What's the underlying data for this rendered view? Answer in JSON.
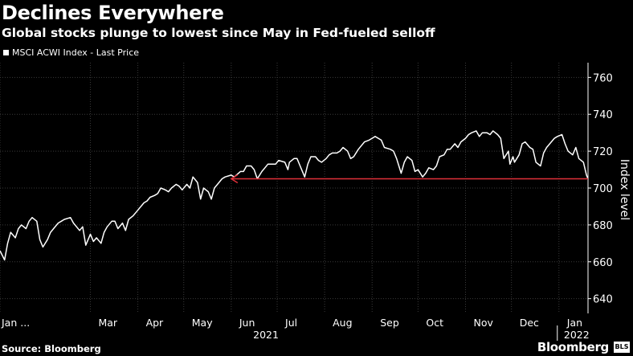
{
  "header": {
    "title": "Declines Everywhere",
    "subtitle": "Global stocks plunge to lowest since May in Fed-fueled selloff"
  },
  "legend": {
    "label": "MSCI ACWI Index - Last Price"
  },
  "footer": {
    "source": "Source: Bloomberg",
    "brand": "Bloomberg",
    "badge": "BLS"
  },
  "colors": {
    "background": "#000000",
    "line": "#ffffff",
    "arrow": "#e0303a",
    "grid": "#3a3a3a"
  },
  "chart_data": {
    "type": "line",
    "title": "Declines Everywhere",
    "subtitle": "Global stocks plunge to lowest since May in Fed-fueled selloff",
    "ylabel": "Index level",
    "ylim": [
      632,
      768
    ],
    "yticks": [
      640,
      660,
      680,
      700,
      720,
      740,
      760
    ],
    "x_domain": [
      "2021-01-01",
      "2022-01-20"
    ],
    "xticks": [
      {
        "date": "2021-01-01",
        "label": "Jan ..."
      },
      {
        "date": "2021-03-01",
        "label": "Mar"
      },
      {
        "date": "2021-04-01",
        "label": "Apr"
      },
      {
        "date": "2021-05-01",
        "label": "May"
      },
      {
        "date": "2021-06-01",
        "label": "Jun"
      },
      {
        "date": "2021-07-01",
        "label": "Jul"
      },
      {
        "date": "2021-08-01",
        "label": "Aug"
      },
      {
        "date": "2021-09-01",
        "label": "Sep"
      },
      {
        "date": "2021-10-01",
        "label": "Oct"
      },
      {
        "date": "2021-11-01",
        "label": "Nov"
      },
      {
        "date": "2021-12-01",
        "label": "Dec"
      },
      {
        "date": "2022-01-01",
        "label": "Jan"
      }
    ],
    "year_labels": [
      {
        "date": "2021-07-01",
        "label": "2021"
      },
      {
        "date": "2022-01-01",
        "label": "2022"
      }
    ],
    "grid": true,
    "legend_position": "top-left",
    "series": [
      {
        "name": "MSCI ACWI Index - Last Price",
        "points": [
          [
            "2021-01-01",
            666
          ],
          [
            "2021-01-04",
            661
          ],
          [
            "2021-01-06",
            670
          ],
          [
            "2021-01-08",
            676
          ],
          [
            "2021-01-11",
            673
          ],
          [
            "2021-01-13",
            678
          ],
          [
            "2021-01-15",
            680
          ],
          [
            "2021-01-18",
            678
          ],
          [
            "2021-01-20",
            682
          ],
          [
            "2021-01-22",
            684
          ],
          [
            "2021-01-25",
            682
          ],
          [
            "2021-01-27",
            672
          ],
          [
            "2021-01-29",
            668
          ],
          [
            "2021-02-01",
            672
          ],
          [
            "2021-02-03",
            676
          ],
          [
            "2021-02-05",
            678
          ],
          [
            "2021-02-08",
            681
          ],
          [
            "2021-02-10",
            682
          ],
          [
            "2021-02-12",
            683
          ],
          [
            "2021-02-16",
            684
          ],
          [
            "2021-02-18",
            681
          ],
          [
            "2021-02-22",
            677
          ],
          [
            "2021-02-24",
            679
          ],
          [
            "2021-02-26",
            669
          ],
          [
            "2021-03-01",
            675
          ],
          [
            "2021-03-03",
            671
          ],
          [
            "2021-03-05",
            673
          ],
          [
            "2021-03-08",
            670
          ],
          [
            "2021-03-10",
            676
          ],
          [
            "2021-03-12",
            679
          ],
          [
            "2021-03-15",
            682
          ],
          [
            "2021-03-17",
            682
          ],
          [
            "2021-03-19",
            678
          ],
          [
            "2021-03-22",
            681
          ],
          [
            "2021-03-24",
            677
          ],
          [
            "2021-03-26",
            683
          ],
          [
            "2021-03-29",
            685
          ],
          [
            "2021-03-31",
            687
          ],
          [
            "2021-04-02",
            689
          ],
          [
            "2021-04-05",
            692
          ],
          [
            "2021-04-07",
            693
          ],
          [
            "2021-04-09",
            695
          ],
          [
            "2021-04-12",
            696
          ],
          [
            "2021-04-14",
            697
          ],
          [
            "2021-04-16",
            700
          ],
          [
            "2021-04-19",
            699
          ],
          [
            "2021-04-21",
            698
          ],
          [
            "2021-04-23",
            700
          ],
          [
            "2021-04-26",
            702
          ],
          [
            "2021-04-28",
            701
          ],
          [
            "2021-04-30",
            699
          ],
          [
            "2021-05-03",
            702
          ],
          [
            "2021-05-05",
            700
          ],
          [
            "2021-05-07",
            706
          ],
          [
            "2021-05-10",
            703
          ],
          [
            "2021-05-12",
            694
          ],
          [
            "2021-05-14",
            700
          ],
          [
            "2021-05-17",
            698
          ],
          [
            "2021-05-19",
            694
          ],
          [
            "2021-05-21",
            700
          ],
          [
            "2021-05-24",
            703
          ],
          [
            "2021-05-26",
            705
          ],
          [
            "2021-05-28",
            706
          ],
          [
            "2021-06-01",
            707
          ],
          [
            "2021-06-03",
            706
          ],
          [
            "2021-06-07",
            709
          ],
          [
            "2021-06-09",
            709
          ],
          [
            "2021-06-11",
            712
          ],
          [
            "2021-06-14",
            712
          ],
          [
            "2021-06-16",
            710
          ],
          [
            "2021-06-18",
            705
          ],
          [
            "2021-06-21",
            709
          ],
          [
            "2021-06-23",
            711
          ],
          [
            "2021-06-25",
            713
          ],
          [
            "2021-06-28",
            713
          ],
          [
            "2021-06-30",
            713
          ],
          [
            "2021-07-02",
            715
          ],
          [
            "2021-07-06",
            714
          ],
          [
            "2021-07-08",
            710
          ],
          [
            "2021-07-09",
            714
          ],
          [
            "2021-07-12",
            716
          ],
          [
            "2021-07-14",
            716
          ],
          [
            "2021-07-16",
            712
          ],
          [
            "2021-07-19",
            706
          ],
          [
            "2021-07-21",
            713
          ],
          [
            "2021-07-23",
            717
          ],
          [
            "2021-07-26",
            717
          ],
          [
            "2021-07-28",
            715
          ],
          [
            "2021-07-30",
            714
          ],
          [
            "2021-08-02",
            716
          ],
          [
            "2021-08-04",
            718
          ],
          [
            "2021-08-06",
            719
          ],
          [
            "2021-08-09",
            719
          ],
          [
            "2021-08-11",
            720
          ],
          [
            "2021-08-13",
            722
          ],
          [
            "2021-08-16",
            720
          ],
          [
            "2021-08-18",
            716
          ],
          [
            "2021-08-20",
            717
          ],
          [
            "2021-08-23",
            721
          ],
          [
            "2021-08-25",
            723
          ],
          [
            "2021-08-27",
            725
          ],
          [
            "2021-08-30",
            726
          ],
          [
            "2021-09-01",
            727
          ],
          [
            "2021-09-03",
            728
          ],
          [
            "2021-09-07",
            726
          ],
          [
            "2021-09-09",
            722
          ],
          [
            "2021-09-13",
            721
          ],
          [
            "2021-09-15",
            720
          ],
          [
            "2021-09-17",
            716
          ],
          [
            "2021-09-20",
            708
          ],
          [
            "2021-09-22",
            714
          ],
          [
            "2021-09-24",
            717
          ],
          [
            "2021-09-27",
            715
          ],
          [
            "2021-09-29",
            709
          ],
          [
            "2021-10-01",
            710
          ],
          [
            "2021-10-04",
            706
          ],
          [
            "2021-10-06",
            708
          ],
          [
            "2021-10-08",
            711
          ],
          [
            "2021-10-11",
            710
          ],
          [
            "2021-10-13",
            712
          ],
          [
            "2021-10-15",
            717
          ],
          [
            "2021-10-18",
            718
          ],
          [
            "2021-10-20",
            721
          ],
          [
            "2021-10-22",
            721
          ],
          [
            "2021-10-25",
            724
          ],
          [
            "2021-10-27",
            722
          ],
          [
            "2021-10-29",
            725
          ],
          [
            "2021-11-01",
            727
          ],
          [
            "2021-11-03",
            729
          ],
          [
            "2021-11-05",
            730
          ],
          [
            "2021-11-08",
            731
          ],
          [
            "2021-11-10",
            728
          ],
          [
            "2021-11-12",
            730
          ],
          [
            "2021-11-15",
            730
          ],
          [
            "2021-11-17",
            729
          ],
          [
            "2021-11-19",
            731
          ],
          [
            "2021-11-22",
            729
          ],
          [
            "2021-11-24",
            727
          ],
          [
            "2021-11-26",
            716
          ],
          [
            "2021-11-29",
            720
          ],
          [
            "2021-11-30",
            713
          ],
          [
            "2021-12-02",
            717
          ],
          [
            "2021-12-03",
            714
          ],
          [
            "2021-12-06",
            718
          ],
          [
            "2021-12-08",
            724
          ],
          [
            "2021-12-10",
            725
          ],
          [
            "2021-12-13",
            722
          ],
          [
            "2021-12-15",
            721
          ],
          [
            "2021-12-17",
            714
          ],
          [
            "2021-12-20",
            712
          ],
          [
            "2021-12-22",
            719
          ],
          [
            "2021-12-24",
            722
          ],
          [
            "2021-12-27",
            725
          ],
          [
            "2021-12-29",
            727
          ],
          [
            "2021-12-31",
            728
          ],
          [
            "2022-01-03",
            729
          ],
          [
            "2022-01-05",
            724
          ],
          [
            "2022-01-07",
            720
          ],
          [
            "2022-01-10",
            718
          ],
          [
            "2022-01-12",
            722
          ],
          [
            "2022-01-14",
            716
          ],
          [
            "2022-01-17",
            714
          ],
          [
            "2022-01-19",
            707
          ],
          [
            "2022-01-20",
            705
          ]
        ]
      }
    ],
    "annotations": [
      {
        "type": "arrow",
        "from_date": "2022-01-20",
        "to_date": "2021-06-01",
        "y": 705,
        "color": "#e0303a"
      }
    ]
  }
}
